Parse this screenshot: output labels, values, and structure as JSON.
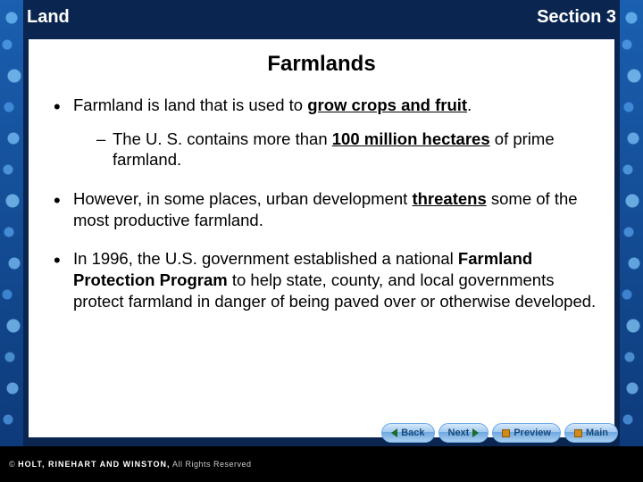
{
  "colors": {
    "page_bg": "#0a2550",
    "content_bg": "#ffffff",
    "header_text": "#ffffff",
    "body_text": "#000000",
    "nav_text": "#1a4a7a",
    "footer_bg": "#000000",
    "footer_text": "#cccccc"
  },
  "header": {
    "left": "Land",
    "right": "Section 3"
  },
  "slide": {
    "title": "Farmlands",
    "bullets": [
      {
        "pre": "Farmland is land that is used to ",
        "bold": "grow crops and fruit",
        "post": ".",
        "sub": {
          "pre": "The U. S. contains more than ",
          "bold": "100 million hectares",
          "post": " of prime farmland."
        }
      },
      {
        "pre": "However, in some places, urban development ",
        "bold": "threatens",
        "post": " some of the most productive farmland."
      },
      {
        "pre": "In 1996, the U.S. government established a national ",
        "bold": "Farmland Protection Program",
        "post": " to help state, county, and local governments protect farmland in danger of being paved over or otherwise developed."
      }
    ]
  },
  "nav": {
    "back": "Back",
    "next": "Next",
    "preview": "Preview",
    "main": "Main"
  },
  "footer": {
    "brand": "HOLT, RINEHART AND WINSTON,",
    "rights": " All Rights Reserved"
  }
}
